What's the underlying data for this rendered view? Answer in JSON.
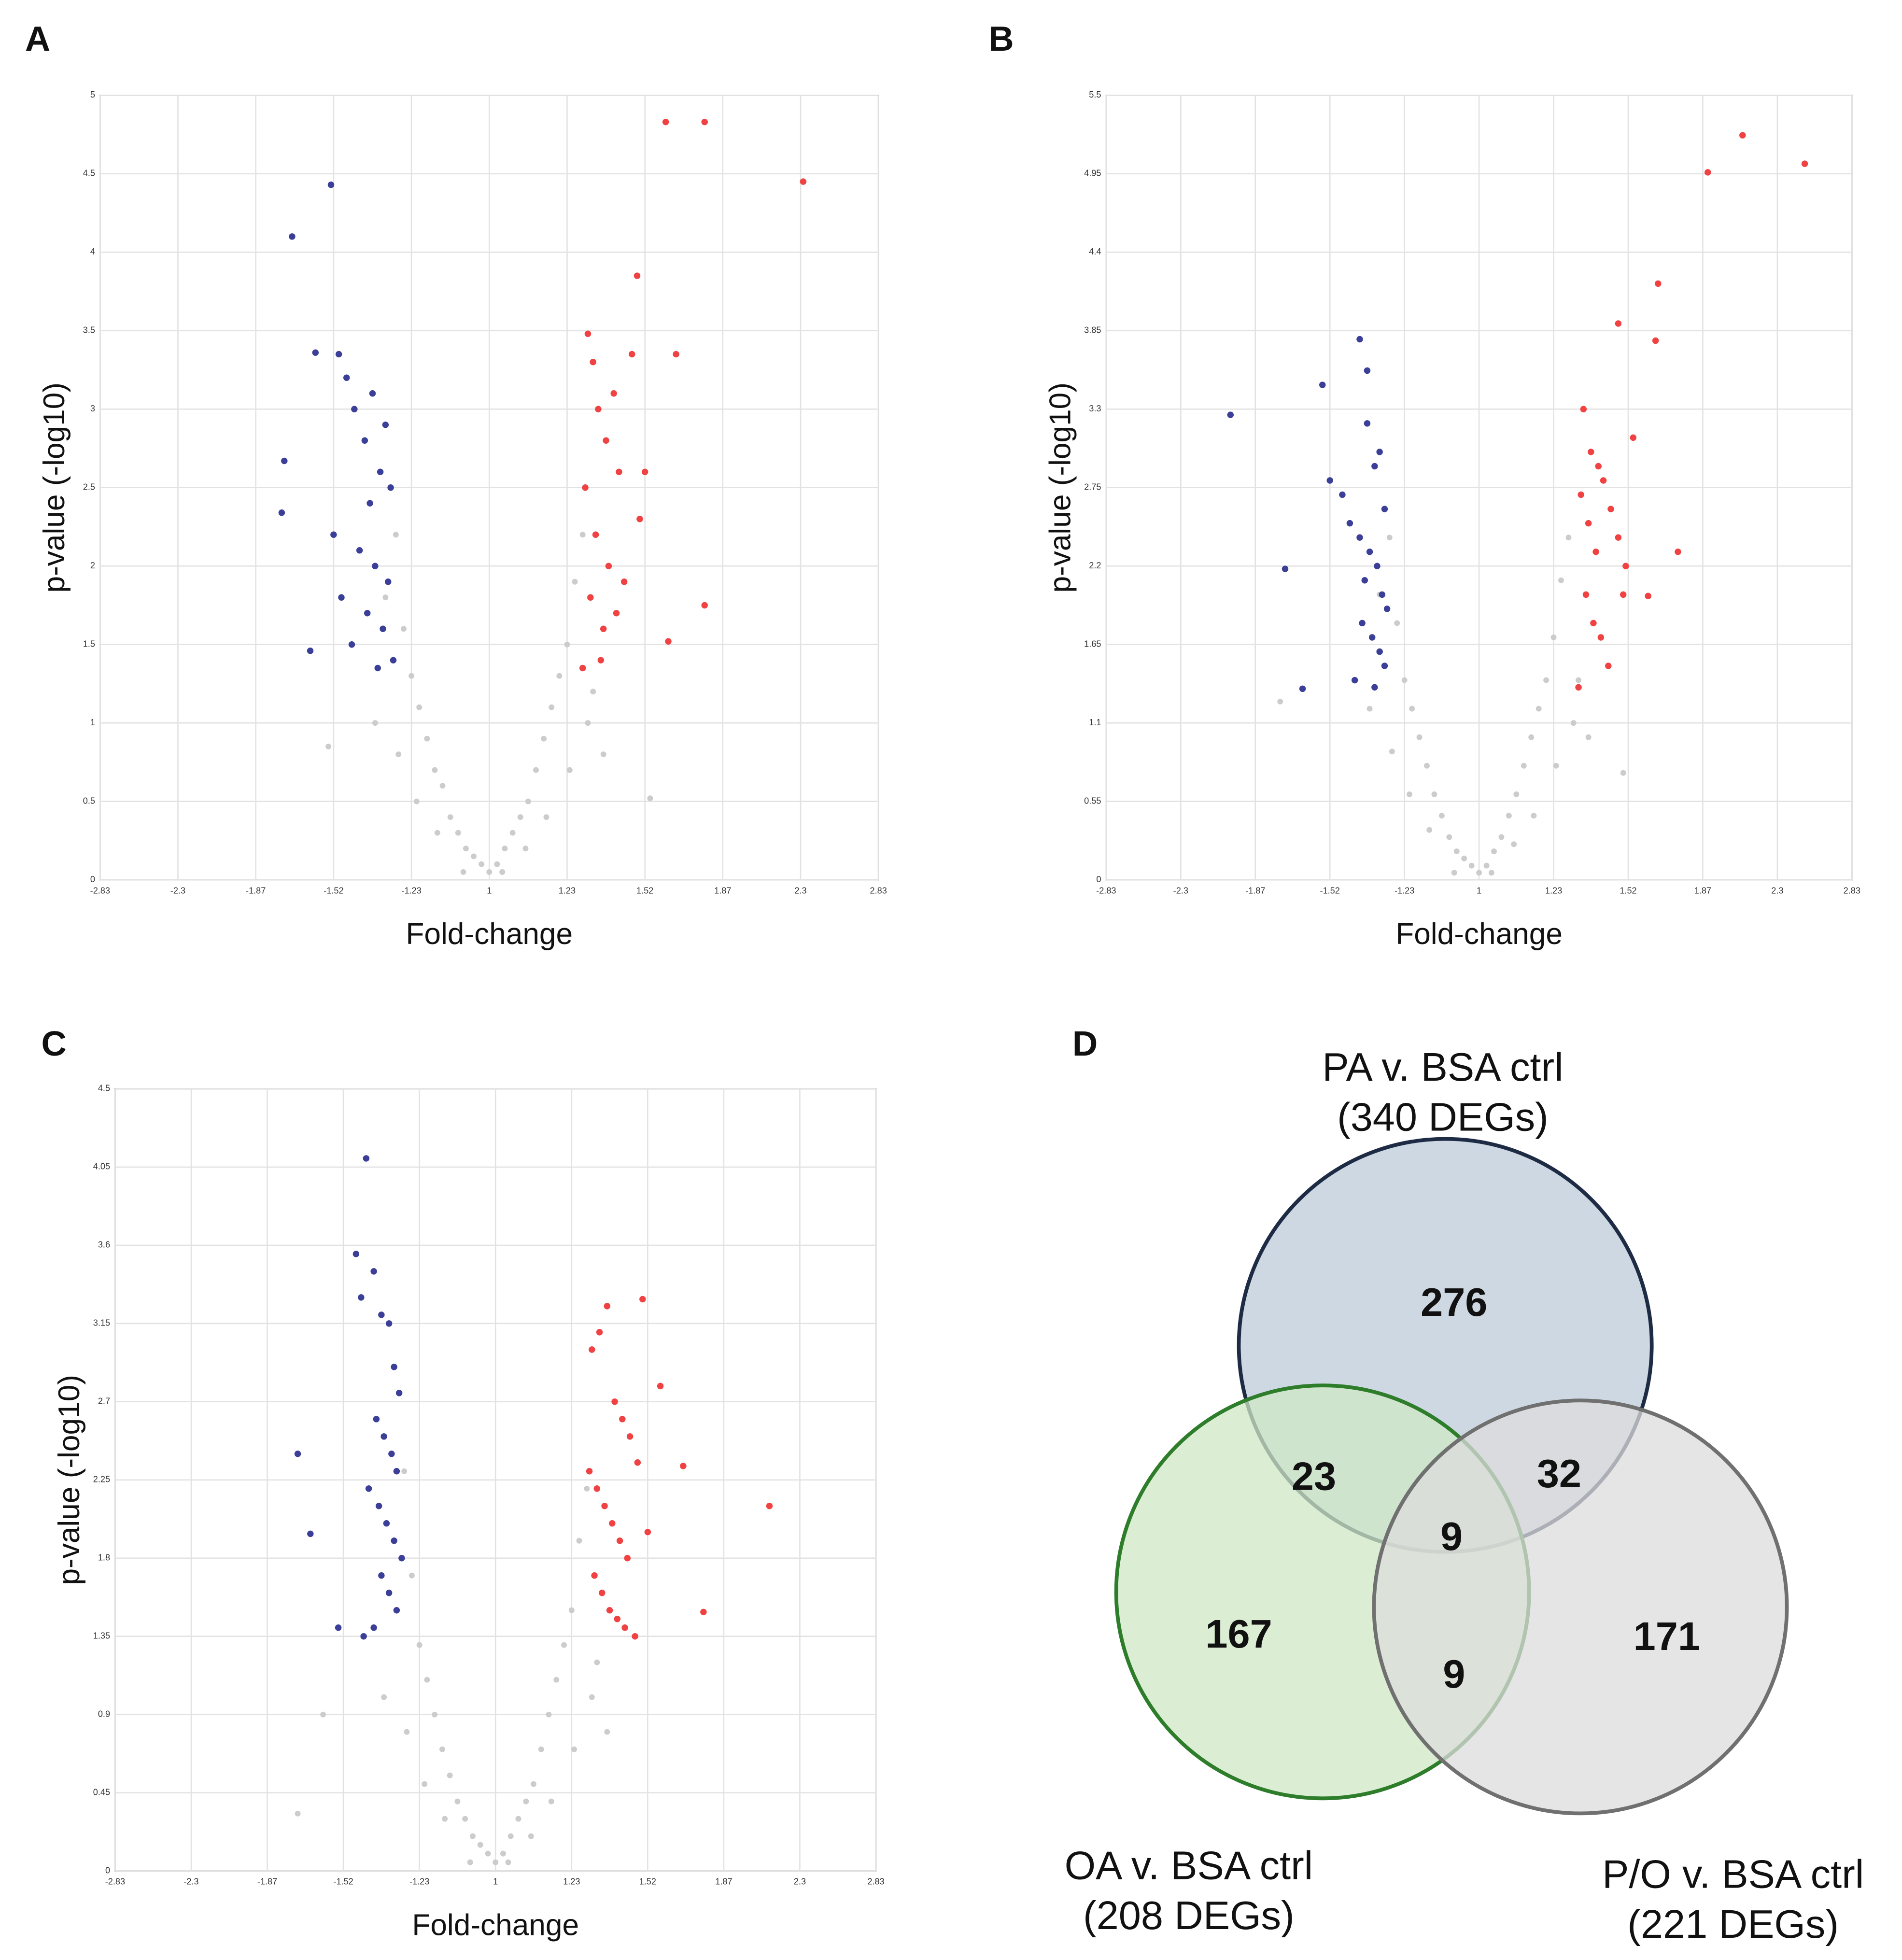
{
  "chart_data": [
    {
      "type": "scatter",
      "panel": "A",
      "xlabel": "Fold-change",
      "ylabel": "p-value (-log10)",
      "grid": true,
      "xlim": [
        -1.5,
        1.5
      ],
      "xticks": [
        {
          "value": -1.5,
          "label": "-2.83"
        },
        {
          "value": -1.2,
          "label": "-2.3"
        },
        {
          "value": -0.9,
          "label": "-1.87"
        },
        {
          "value": -0.6,
          "label": "-1.52"
        },
        {
          "value": -0.3,
          "label": "-1.23"
        },
        {
          "value": 0,
          "label": "1"
        },
        {
          "value": 0.3,
          "label": "1.23"
        },
        {
          "value": 0.6,
          "label": "1.52"
        },
        {
          "value": 0.9,
          "label": "1.87"
        },
        {
          "value": 1.2,
          "label": "2.3"
        },
        {
          "value": 1.5,
          "label": "2.83"
        }
      ],
      "ylim": [
        0,
        5
      ],
      "yticks": [
        0,
        0.5,
        1,
        1.5,
        2,
        2.5,
        3,
        3.5,
        4,
        4.5,
        5
      ],
      "series": [
        {
          "color": "#cccccc",
          "x": [
            -0.44,
            -0.4,
            -0.36,
            -0.33,
            -0.3,
            -0.27,
            -0.24,
            -0.21,
            -0.18,
            -0.15,
            -0.12,
            -0.09,
            -0.06,
            -0.03,
            0,
            0.03,
            0.06,
            0.09,
            0.12,
            0.15,
            0.18,
            0.21,
            0.24,
            0.27,
            0.3,
            0.33,
            0.36,
            0.4,
            0.44,
            -0.35,
            -0.28,
            -0.2,
            -0.1,
            0.05,
            0.14,
            0.22,
            0.31,
            0.38,
            -0.62,
            0.62
          ],
          "values": [
            1.0,
            1.8,
            2.2,
            1.6,
            1.3,
            1.1,
            0.9,
            0.7,
            0.6,
            0.4,
            0.3,
            0.2,
            0.15,
            0.1,
            0.05,
            0.1,
            0.2,
            0.3,
            0.4,
            0.5,
            0.7,
            0.9,
            1.1,
            1.3,
            1.5,
            1.9,
            2.2,
            1.2,
            0.8,
            0.8,
            0.5,
            0.3,
            0.05,
            0.05,
            0.2,
            0.4,
            0.7,
            1.0,
            0.85,
            0.52
          ]
        },
        {
          "color": "#3b3f98",
          "x": [
            -0.61,
            -0.76,
            -0.67,
            -0.79,
            -0.8,
            -0.69,
            -0.58,
            -0.55,
            -0.52,
            -0.48,
            -0.45,
            -0.42,
            -0.4,
            -0.38,
            -0.6,
            -0.5,
            -0.44,
            -0.39,
            -0.57,
            -0.47,
            -0.41,
            -0.37,
            -0.53,
            -0.46,
            -0.43
          ],
          "values": [
            4.43,
            4.1,
            3.36,
            2.67,
            2.34,
            1.46,
            3.35,
            3.2,
            3.0,
            2.8,
            3.1,
            2.6,
            2.9,
            2.5,
            2.2,
            2.1,
            2.0,
            1.9,
            1.8,
            1.7,
            1.6,
            1.4,
            1.5,
            2.4,
            1.35
          ]
        },
        {
          "color": "#f04242",
          "x": [
            0.68,
            0.83,
            1.21,
            0.57,
            0.72,
            0.83,
            0.69,
            0.38,
            0.4,
            0.42,
            0.45,
            0.48,
            0.5,
            0.55,
            0.37,
            0.41,
            0.46,
            0.52,
            0.39,
            0.44,
            0.49,
            0.43,
            0.6,
            0.58,
            0.36
          ],
          "values": [
            4.83,
            4.83,
            4.45,
            3.85,
            3.35,
            1.75,
            1.52,
            3.48,
            3.3,
            3.0,
            2.8,
            3.1,
            2.6,
            3.35,
            2.5,
            2.2,
            2.0,
            1.9,
            1.8,
            1.6,
            1.7,
            1.4,
            2.6,
            2.3,
            1.35
          ]
        }
      ]
    },
    {
      "type": "scatter",
      "panel": "B",
      "xlabel": "Fold-change",
      "ylabel": "p-value (-log10)",
      "grid": true,
      "xlim": [
        -1.5,
        1.5
      ],
      "xticks": [
        {
          "value": -1.5,
          "label": "-2.83"
        },
        {
          "value": -1.2,
          "label": "-2.3"
        },
        {
          "value": -0.9,
          "label": "-1.87"
        },
        {
          "value": -0.6,
          "label": "-1.52"
        },
        {
          "value": -0.3,
          "label": "-1.23"
        },
        {
          "value": 0,
          "label": "1"
        },
        {
          "value": 0.3,
          "label": "1.23"
        },
        {
          "value": 0.6,
          "label": "1.52"
        },
        {
          "value": 0.9,
          "label": "1.87"
        },
        {
          "value": 1.2,
          "label": "2.3"
        },
        {
          "value": 1.5,
          "label": "2.83"
        }
      ],
      "ylim": [
        0,
        5.5
      ],
      "yticks": [
        0,
        0.55,
        1.1,
        1.65,
        2.2,
        2.75,
        3.3,
        3.85,
        4.4,
        4.95,
        5.5
      ],
      "series": [
        {
          "color": "#cccccc",
          "x": [
            -0.44,
            -0.4,
            -0.36,
            -0.33,
            -0.3,
            -0.27,
            -0.24,
            -0.21,
            -0.18,
            -0.15,
            -0.12,
            -0.09,
            -0.06,
            -0.03,
            0,
            0.03,
            0.06,
            0.09,
            0.12,
            0.15,
            0.18,
            0.21,
            0.24,
            0.27,
            0.3,
            0.33,
            0.36,
            0.4,
            0.44,
            -0.35,
            -0.28,
            -0.2,
            -0.1,
            0.05,
            0.14,
            0.22,
            0.31,
            0.38,
            -0.8,
            0.58
          ],
          "values": [
            1.2,
            2.0,
            2.4,
            1.8,
            1.4,
            1.2,
            1.0,
            0.8,
            0.6,
            0.45,
            0.3,
            0.2,
            0.15,
            0.1,
            0.05,
            0.1,
            0.2,
            0.3,
            0.45,
            0.6,
            0.8,
            1.0,
            1.2,
            1.4,
            1.7,
            2.1,
            2.4,
            1.4,
            1.0,
            0.9,
            0.6,
            0.35,
            0.05,
            0.05,
            0.25,
            0.45,
            0.8,
            1.1,
            1.25,
            0.75
          ]
        },
        {
          "color": "#3b3f98",
          "x": [
            -1.0,
            -0.48,
            -0.45,
            -0.63,
            -0.78,
            -0.71,
            -0.6,
            -0.55,
            -0.52,
            -0.48,
            -0.45,
            -0.42,
            -0.4,
            -0.38,
            -0.44,
            -0.41,
            -0.39,
            -0.37,
            -0.47,
            -0.43,
            -0.4,
            -0.38,
            -0.5,
            -0.46,
            -0.42
          ],
          "values": [
            3.26,
            3.79,
            3.57,
            3.47,
            2.18,
            1.34,
            2.8,
            2.7,
            2.5,
            2.4,
            3.2,
            2.9,
            3.0,
            2.6,
            2.3,
            2.2,
            2.0,
            1.9,
            1.8,
            1.7,
            1.6,
            1.5,
            1.4,
            2.1,
            1.35
          ]
        },
        {
          "color": "#f04242",
          "x": [
            0.92,
            1.06,
            1.31,
            0.72,
            0.56,
            0.71,
            0.8,
            0.68,
            0.42,
            0.45,
            0.48,
            0.5,
            0.53,
            0.56,
            0.41,
            0.44,
            0.47,
            0.59,
            0.43,
            0.46,
            0.49,
            0.52,
            0.62,
            0.58,
            0.4
          ],
          "values": [
            4.96,
            5.22,
            5.02,
            4.18,
            3.9,
            3.78,
            2.3,
            1.99,
            3.3,
            3.0,
            2.9,
            2.8,
            2.6,
            2.4,
            2.7,
            2.5,
            2.3,
            2.2,
            2.0,
            1.8,
            1.7,
            1.5,
            3.1,
            2.0,
            1.35
          ]
        }
      ]
    },
    {
      "type": "scatter",
      "panel": "C",
      "xlabel": "Fold-change",
      "ylabel": "p-value (-log10)",
      "grid": true,
      "xlim": [
        -1.5,
        1.5
      ],
      "xticks": [
        {
          "value": -1.5,
          "label": "-2.83"
        },
        {
          "value": -1.2,
          "label": "-2.3"
        },
        {
          "value": -0.9,
          "label": "-1.87"
        },
        {
          "value": -0.6,
          "label": "-1.52"
        },
        {
          "value": -0.3,
          "label": "-1.23"
        },
        {
          "value": 0,
          "label": "1"
        },
        {
          "value": 0.3,
          "label": "1.23"
        },
        {
          "value": 0.6,
          "label": "1.52"
        },
        {
          "value": 0.9,
          "label": "1.87"
        },
        {
          "value": 1.2,
          "label": "2.3"
        },
        {
          "value": 1.5,
          "label": "2.83"
        }
      ],
      "ylim": [
        0,
        4.5
      ],
      "yticks": [
        0,
        0.45,
        0.9,
        1.35,
        1.8,
        2.25,
        2.7,
        3.15,
        3.6,
        4.05,
        4.5
      ],
      "series": [
        {
          "color": "#cccccc",
          "x": [
            -0.44,
            -0.4,
            -0.36,
            -0.33,
            -0.3,
            -0.27,
            -0.24,
            -0.21,
            -0.18,
            -0.15,
            -0.12,
            -0.09,
            -0.06,
            -0.03,
            0,
            0.03,
            0.06,
            0.09,
            0.12,
            0.15,
            0.18,
            0.21,
            0.24,
            0.27,
            0.3,
            0.33,
            0.36,
            0.4,
            0.44,
            -0.35,
            -0.28,
            -0.2,
            -0.1,
            0.05,
            0.14,
            0.22,
            0.31,
            0.38,
            -0.78,
            -0.68
          ],
          "values": [
            1.0,
            1.9,
            2.3,
            1.7,
            1.3,
            1.1,
            0.9,
            0.7,
            0.55,
            0.4,
            0.3,
            0.2,
            0.15,
            0.1,
            0.05,
            0.1,
            0.2,
            0.3,
            0.4,
            0.5,
            0.7,
            0.9,
            1.1,
            1.3,
            1.5,
            1.9,
            2.2,
            1.2,
            0.8,
            0.8,
            0.5,
            0.3,
            0.05,
            0.05,
            0.2,
            0.4,
            0.7,
            1.0,
            0.33,
            0.9
          ]
        },
        {
          "color": "#3b3f98",
          "x": [
            -0.51,
            -0.55,
            -0.78,
            -0.73,
            -0.62,
            -0.48,
            -0.45,
            -0.42,
            -0.4,
            -0.38,
            -0.53,
            -0.47,
            -0.44,
            -0.41,
            -0.39,
            -0.5,
            -0.46,
            -0.43,
            -0.4,
            -0.37,
            -0.45,
            -0.42,
            -0.39,
            -0.48,
            -0.52
          ],
          "values": [
            4.1,
            3.55,
            2.4,
            1.94,
            1.4,
            3.45,
            3.2,
            3.15,
            2.9,
            2.75,
            3.3,
            2.6,
            2.5,
            2.4,
            2.3,
            2.2,
            2.1,
            2.0,
            1.9,
            1.8,
            1.7,
            1.6,
            1.5,
            1.4,
            1.35
          ]
        },
        {
          "color": "#f04242",
          "x": [
            1.08,
            0.82,
            0.74,
            0.65,
            0.58,
            0.38,
            0.41,
            0.44,
            0.47,
            0.5,
            0.53,
            0.56,
            0.37,
            0.4,
            0.43,
            0.46,
            0.49,
            0.52,
            0.6,
            0.39,
            0.42,
            0.45,
            0.48,
            0.51,
            0.55
          ],
          "values": [
            2.1,
            1.49,
            2.33,
            2.79,
            3.29,
            3.0,
            3.1,
            3.25,
            2.7,
            2.6,
            2.5,
            2.35,
            2.3,
            2.2,
            2.1,
            2.0,
            1.9,
            1.8,
            1.95,
            1.7,
            1.6,
            1.5,
            1.45,
            1.4,
            1.35
          ]
        }
      ]
    },
    {
      "type": "venn",
      "panel": "D",
      "sets": [
        {
          "name": "PA v. BSA ctrl",
          "count": "(340 DEGs)",
          "color": "#bccbda",
          "stroke": "#1e2b44"
        },
        {
          "name": "OA v. BSA ctrl",
          "count": "(208 DEGs)",
          "color": "#cfe8c6",
          "stroke": "#2e7d2b"
        },
        {
          "name": "P/O v. BSA ctrl",
          "count": "(221 DEGs)",
          "color": "#dcdcdc",
          "stroke": "#707070"
        }
      ],
      "values": [
        276,
        23,
        32,
        9,
        167,
        9,
        171
      ]
    }
  ]
}
